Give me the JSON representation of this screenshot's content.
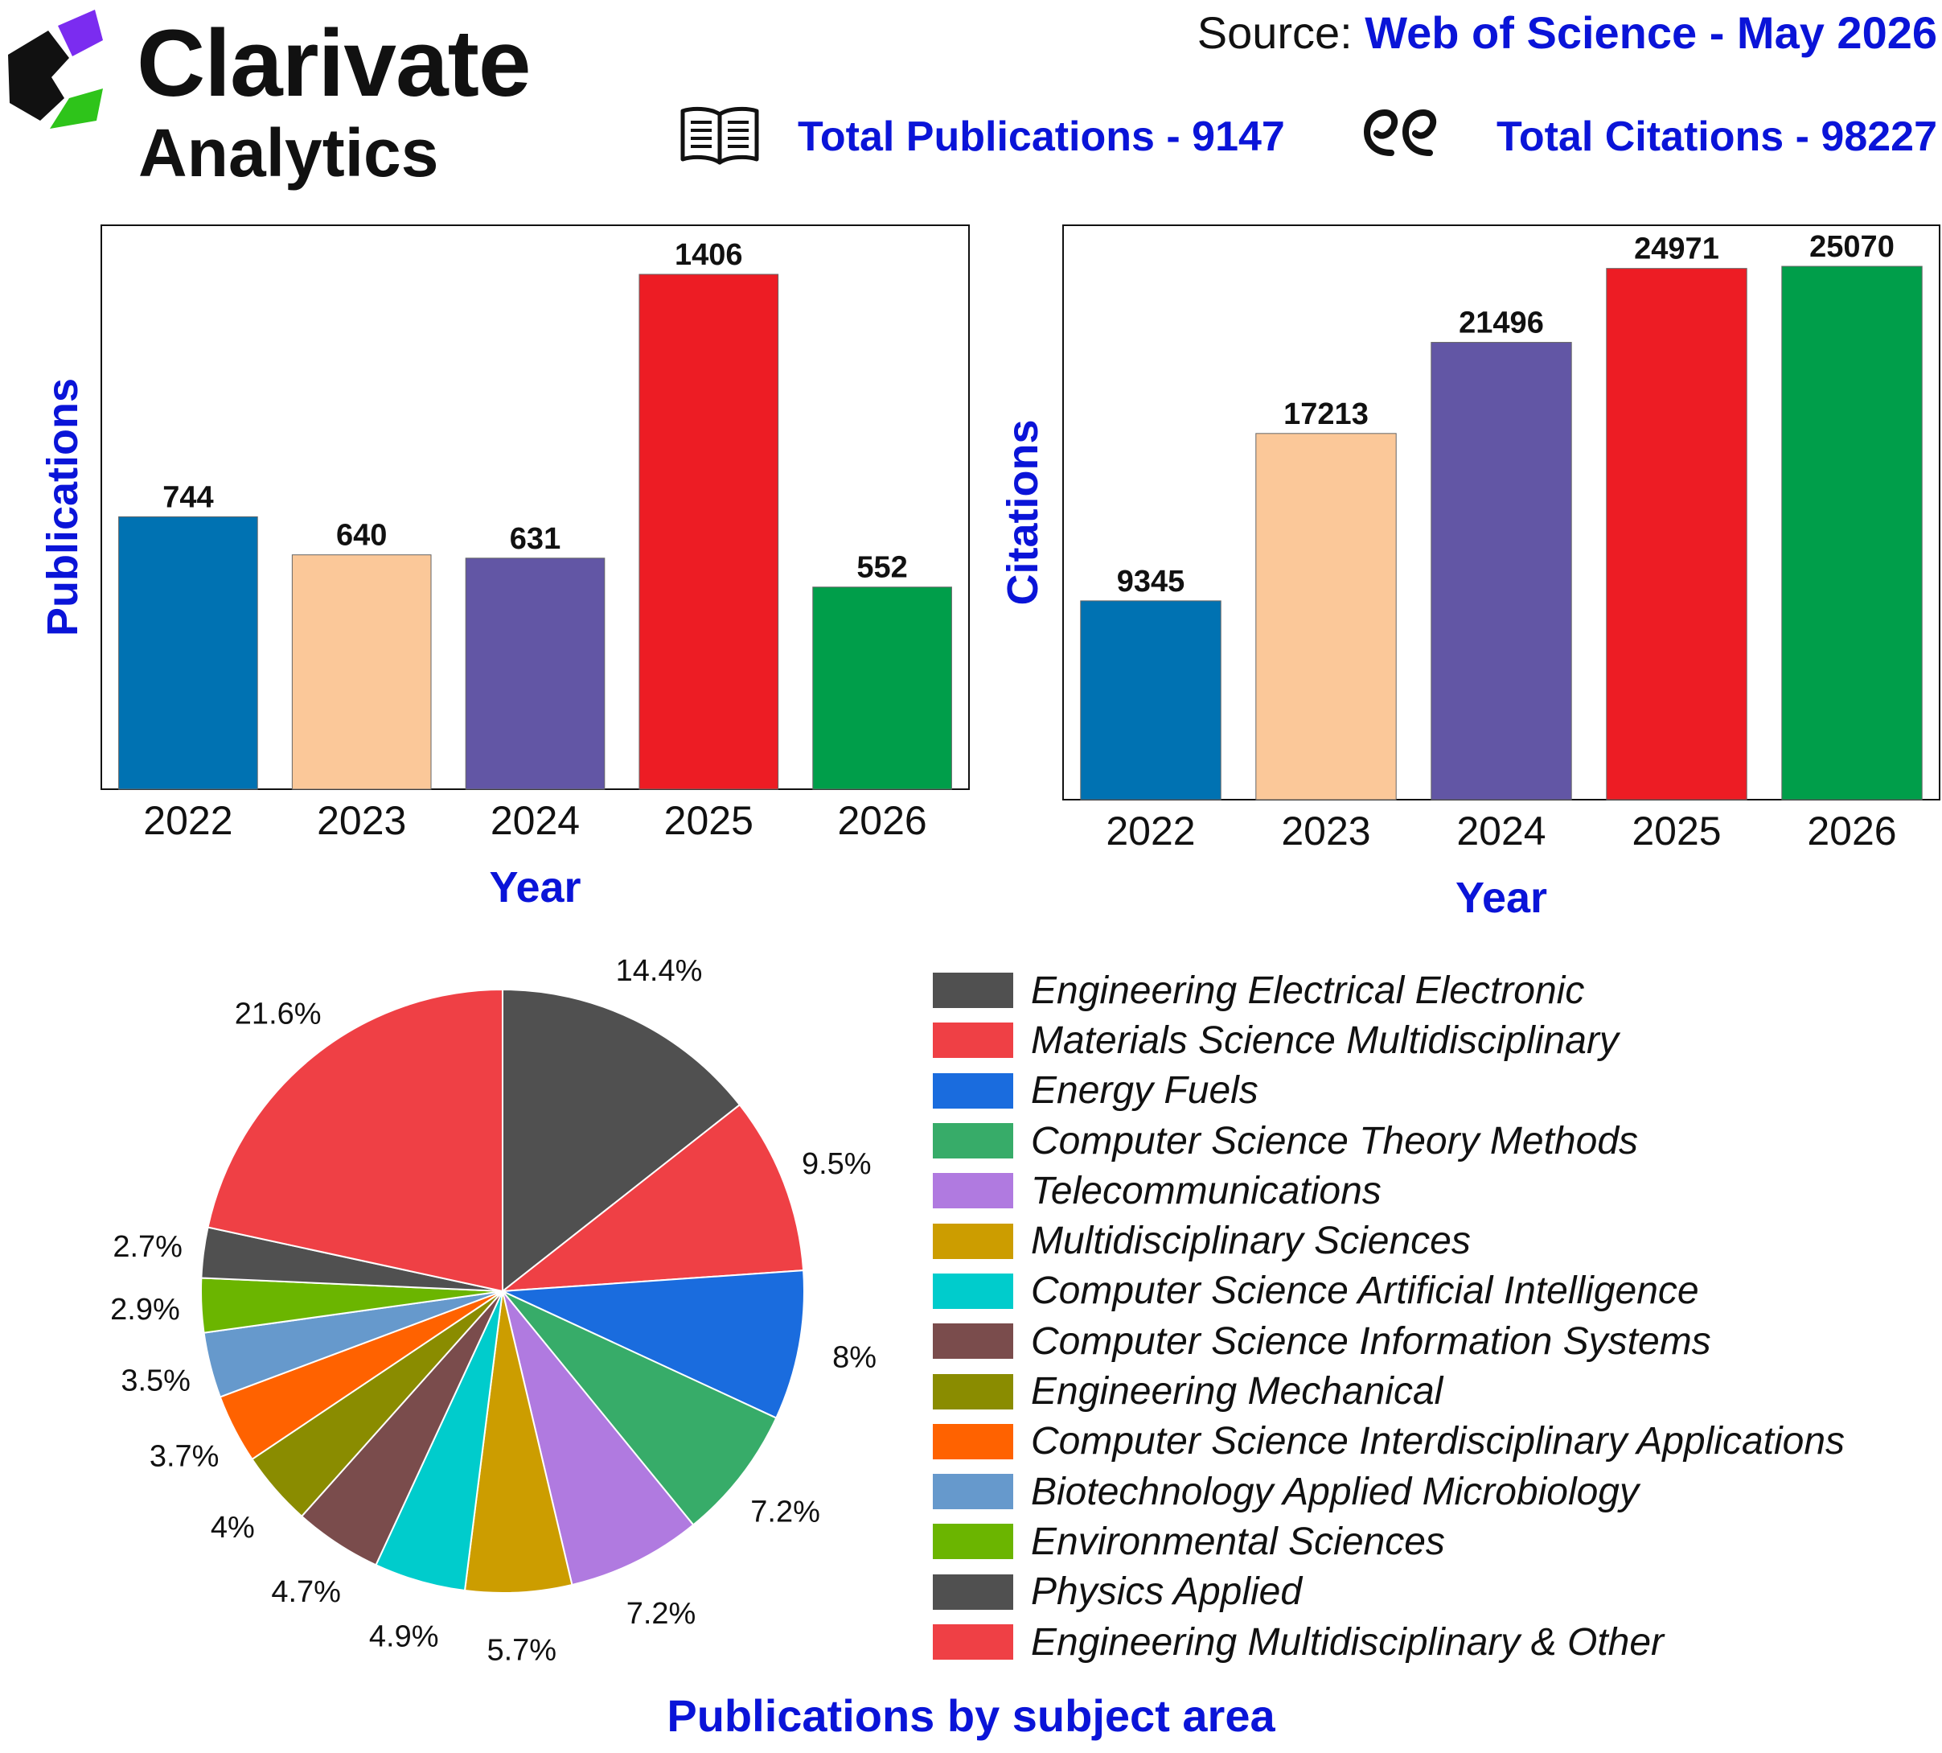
{
  "header": {
    "brand": {
      "name": "Clarivate",
      "sub": "Analytics",
      "logo_icon": "clarivate-logo-icon",
      "logo_colors": [
        "#7b2cf0",
        "#111111",
        "#2ec41a"
      ]
    },
    "source_label": "Source:",
    "source_value": "Web of Science - May 2026",
    "total_publications": "Total Publications - 9147",
    "total_citations": "Total Citations - 98227",
    "publications_icon": "open-book-icon",
    "citations_icon": "quotation-marks-icon"
  },
  "colors": {
    "accent_text": "#0a14d8",
    "bar_palette": [
      "#0072b2",
      "#fbc899",
      "#6256a5",
      "#ed1c24",
      "#009e4a"
    ],
    "pie_palette": [
      "#505050",
      "#ef4045",
      "#1a6cde",
      "#37ac69",
      "#b07ae0",
      "#cc9d00",
      "#00cccc",
      "#7a4c4c",
      "#8a8c00",
      "#ff6200",
      "#6699cc",
      "#6bb500",
      "#505050",
      "#ef4045"
    ]
  },
  "chart_data": [
    {
      "type": "bar",
      "title": "",
      "categories": [
        "2022",
        "2023",
        "2024",
        "2025",
        "2026"
      ],
      "values": [
        744,
        640,
        631,
        1406,
        552
      ],
      "xlabel": "Year",
      "ylabel": "Publications",
      "ylim": [
        0,
        1540
      ],
      "grid": false,
      "data_labels": true
    },
    {
      "type": "bar",
      "title": "",
      "categories": [
        "2022",
        "2023",
        "2024",
        "2025",
        "2026"
      ],
      "values": [
        9345,
        17213,
        21496,
        24971,
        25070
      ],
      "xlabel": "Year",
      "ylabel": "Citations",
      "ylim": [
        0,
        27000
      ],
      "grid": false,
      "data_labels": true
    },
    {
      "type": "pie",
      "title": "Publications by subject area",
      "legend_position": "right",
      "slices": [
        {
          "label": "Engineering Electrical Electronic",
          "value": 14.4,
          "value_label": "14.4%"
        },
        {
          "label": "Materials Science Multidisciplinary",
          "value": 9.5,
          "value_label": "9.5%"
        },
        {
          "label": "Energy Fuels",
          "value": 8,
          "value_label": "8%"
        },
        {
          "label": "Computer Science Theory Methods",
          "value": 7.2,
          "value_label": "7.2%"
        },
        {
          "label": "Telecommunications",
          "value": 7.2,
          "value_label": "7.2%"
        },
        {
          "label": "Multidisciplinary Sciences",
          "value": 5.7,
          "value_label": "5.7%"
        },
        {
          "label": "Computer Science Artificial Intelligence",
          "value": 4.9,
          "value_label": "4.9%"
        },
        {
          "label": "Computer Science Information Systems",
          "value": 4.7,
          "value_label": "4.7%"
        },
        {
          "label": "Engineering Mechanical",
          "value": 4,
          "value_label": "4%"
        },
        {
          "label": "Computer Science Interdisciplinary Applications",
          "value": 3.7,
          "value_label": "3.7%"
        },
        {
          "label": "Biotechnology Applied Microbiology",
          "value": 3.5,
          "value_label": "3.5%"
        },
        {
          "label": "Environmental Sciences",
          "value": 2.9,
          "value_label": "2.9%"
        },
        {
          "label": "Physics Applied",
          "value": 2.7,
          "value_label": "2.7%"
        },
        {
          "label": "Engineering Multidisciplinary & Other",
          "value": 21.6,
          "value_label": "21.6%"
        }
      ]
    }
  ]
}
